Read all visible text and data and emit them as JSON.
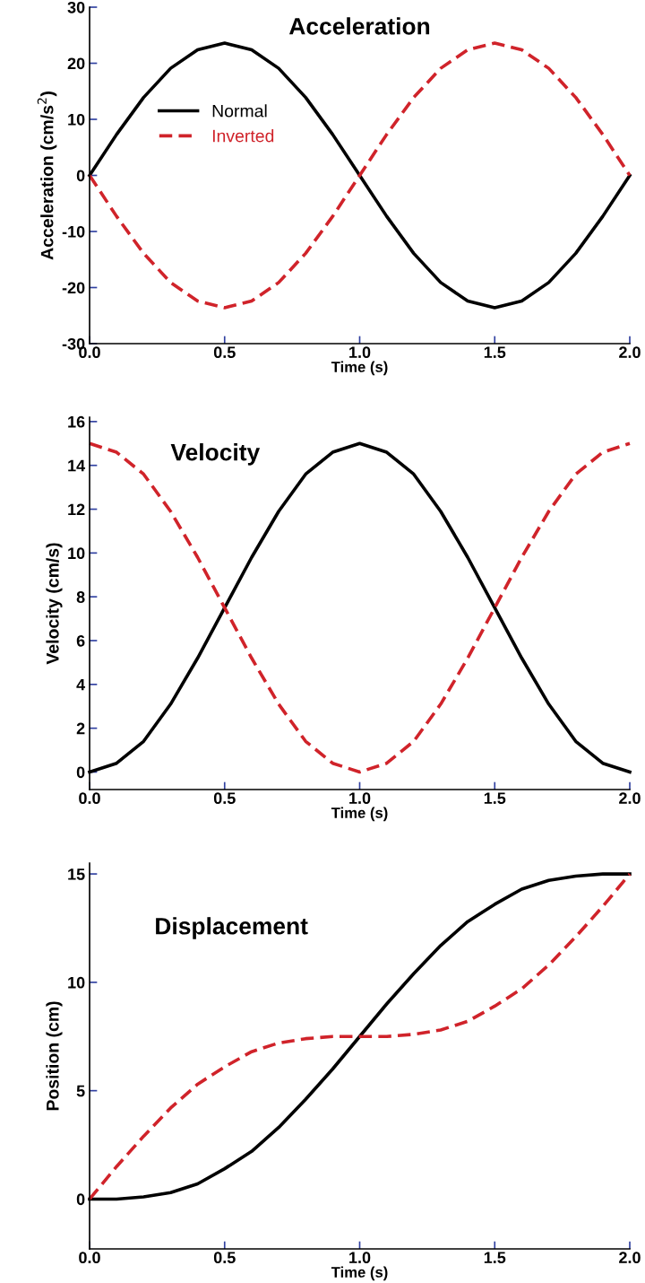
{
  "chart_data": [
    {
      "type": "line",
      "title": "Acceleration",
      "xlabel": "Time (s)",
      "ylabel": "Acceleration (cm/s$^{2}$)",
      "legend": "left",
      "grid": false,
      "x": [
        0,
        0.1,
        0.2,
        0.3,
        0.4,
        0.5,
        0.6,
        0.7,
        0.8,
        0.9,
        1.0,
        1.1,
        1.2,
        1.3,
        1.4,
        1.5,
        1.6,
        1.7,
        1.8,
        1.9,
        2.0
      ],
      "xlim": [
        0,
        2
      ],
      "xticks": [
        {
          "value": 0,
          "label": "0.0"
        },
        {
          "value": 0.5,
          "label": "0.5"
        },
        {
          "value": 1,
          "label": "1.0"
        },
        {
          "value": 1.5,
          "label": "1.5"
        },
        {
          "value": 2,
          "label": "2.0"
        }
      ],
      "ylim": [
        -30,
        30
      ],
      "yticks": [
        -30,
        -20,
        -10,
        0,
        10,
        20,
        30
      ],
      "series": [
        {
          "name": "Normal",
          "color": "#000000",
          "line_style": "solid",
          "values": [
            0,
            7.3,
            13.9,
            19.1,
            22.4,
            23.6,
            22.4,
            19.1,
            13.9,
            7.3,
            0,
            -7.3,
            -13.9,
            -19.1,
            -22.4,
            -23.6,
            -22.4,
            -19.1,
            -13.9,
            -7.3,
            0
          ]
        },
        {
          "name": "Inverted",
          "color": "#d0232a",
          "line_style": "dashed",
          "values": [
            0,
            -7.3,
            -13.9,
            -19.1,
            -22.4,
            -23.6,
            -22.4,
            -19.1,
            -13.9,
            -7.3,
            0,
            7.3,
            13.9,
            19.1,
            22.4,
            23.6,
            22.4,
            19.1,
            13.9,
            7.3,
            0
          ]
        }
      ]
    },
    {
      "type": "line",
      "title": "Velocity",
      "xlabel": "Time (s)",
      "ylabel": "Velocity (cm/s)",
      "grid": false,
      "x": [
        0,
        0.1,
        0.2,
        0.3,
        0.4,
        0.5,
        0.6,
        0.7,
        0.8,
        0.9,
        1.0,
        1.1,
        1.2,
        1.3,
        1.4,
        1.5,
        1.6,
        1.7,
        1.8,
        1.9,
        2.0
      ],
      "xlim": [
        0,
        2
      ],
      "xticks": [
        {
          "value": 0,
          "label": "0.0"
        },
        {
          "value": 0.5,
          "label": "0.5"
        },
        {
          "value": 1,
          "label": "1.0"
        },
        {
          "value": 1.5,
          "label": "1.5"
        },
        {
          "value": 2,
          "label": "2.0"
        }
      ],
      "ylim": [
        -0.8,
        16.2
      ],
      "yticks": [
        0,
        2,
        4,
        6,
        8,
        10,
        12,
        14,
        16
      ],
      "series": [
        {
          "color": "#000000",
          "line_style": "solid",
          "values": [
            0,
            0.4,
            1.4,
            3.1,
            5.2,
            7.5,
            9.8,
            11.9,
            13.6,
            14.6,
            15,
            14.6,
            13.6,
            11.9,
            9.8,
            7.5,
            5.2,
            3.1,
            1.4,
            0.4,
            0
          ]
        },
        {
          "color": "#d0232a",
          "line_style": "dashed",
          "values": [
            15,
            14.6,
            13.6,
            11.9,
            9.8,
            7.5,
            5.2,
            3.1,
            1.4,
            0.4,
            0,
            0.4,
            1.4,
            3.1,
            5.2,
            7.5,
            9.8,
            11.9,
            13.6,
            14.6,
            15
          ]
        }
      ]
    },
    {
      "type": "line",
      "title": "Displacement",
      "xlabel": "Time (s)",
      "ylabel": "Position (cm)",
      "grid": false,
      "x": [
        0,
        0.1,
        0.2,
        0.3,
        0.4,
        0.5,
        0.6,
        0.7,
        0.8,
        0.9,
        1.0,
        1.1,
        1.2,
        1.3,
        1.4,
        1.5,
        1.6,
        1.7,
        1.8,
        1.9,
        2.0
      ],
      "xlim": [
        0,
        2
      ],
      "xticks": [
        {
          "value": 0,
          "label": "0.0"
        },
        {
          "value": 0.5,
          "label": "0.5"
        },
        {
          "value": 1,
          "label": "1.0"
        },
        {
          "value": 1.5,
          "label": "1.5"
        },
        {
          "value": 2,
          "label": "2.0"
        }
      ],
      "ylim": [
        -2.3,
        15.5
      ],
      "yticks": [
        0,
        5,
        10,
        15
      ],
      "series": [
        {
          "color": "#000000",
          "line_style": "solid",
          "values": [
            0,
            0,
            0.1,
            0.3,
            0.7,
            1.4,
            2.2,
            3.3,
            4.6,
            6.0,
            7.5,
            9.0,
            10.4,
            11.7,
            12.8,
            13.6,
            14.3,
            14.7,
            14.9,
            15,
            15
          ]
        },
        {
          "color": "#d0232a",
          "line_style": "dashed",
          "values": [
            0,
            1.5,
            2.9,
            4.2,
            5.3,
            6.1,
            6.8,
            7.2,
            7.4,
            7.5,
            7.5,
            7.5,
            7.6,
            7.8,
            8.2,
            8.9,
            9.7,
            10.8,
            12.1,
            13.5,
            15
          ]
        }
      ]
    }
  ]
}
